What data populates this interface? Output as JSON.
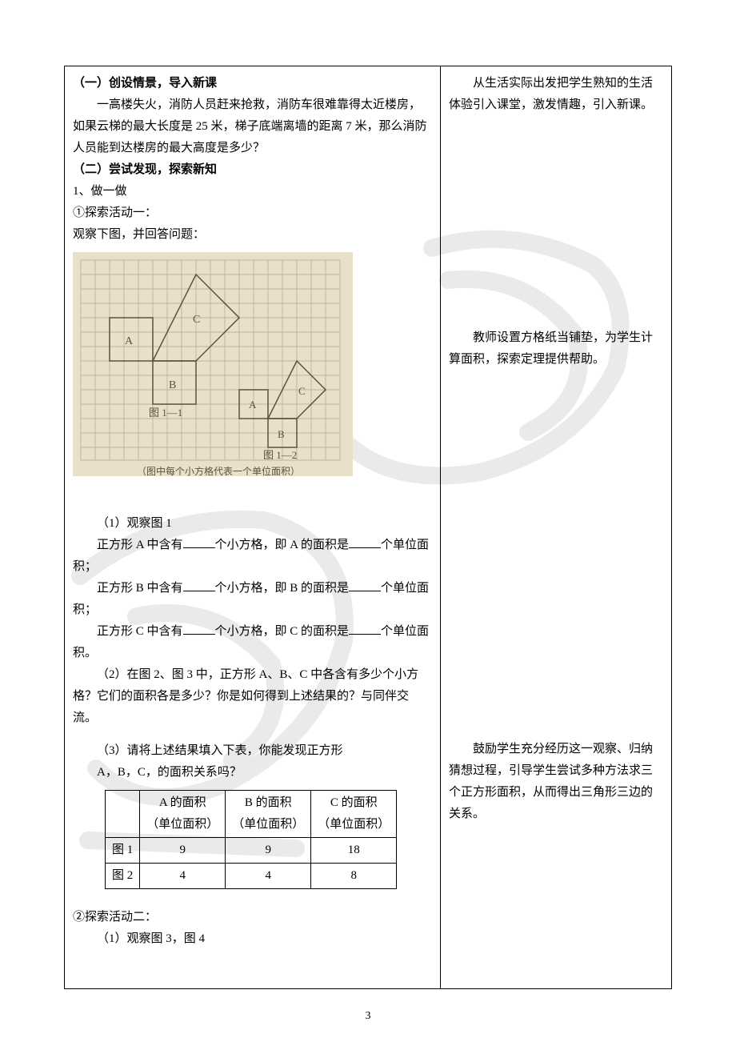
{
  "watermark": {
    "stroke": "#d6d6d6",
    "opacity": 0.55
  },
  "section1": {
    "title": "（一）创设情景，导入新课",
    "para": "一高楼失火，消防人员赶来抢救，消防车很难靠得太近楼房，如果云梯的最大长度是 25 米，梯子底端离墙的距离 7 米，那么消防人员能到达楼房的最大高度是多少？"
  },
  "note1": "从生活实际出发把学生熟知的生活体验引入课堂，激发情趣，引入新课。",
  "section2": {
    "title": "（二）尝试发现，探索新知",
    "item1": "1、做一做",
    "act1_label": "①探索活动一：",
    "act1_intro": "观察下图，并回答问题：",
    "figure": {
      "bg": "#e8e0c8",
      "grid": "#b0a988",
      "line": "#5a5340",
      "text": "#5a5340",
      "caption": "（图中每个小方格代表一个单位面积）",
      "labels": {
        "A": "A",
        "B": "B",
        "C": "C",
        "fig1": "图 1—1",
        "fig2": "图 1—2"
      }
    },
    "q1_title": "（1）观察图 1",
    "q1_a_pre": "正方形 A 中含有",
    "q1_a_mid": "个小方格，即 A 的面积是",
    "q1_a_post": "个单位面积；",
    "q1_b_pre": "正方形 B 中含有",
    "q1_b_mid": "个小方格，即 B 的面积是",
    "q1_b_post": "个单位面积；",
    "q1_c_pre": "正方形 C 中含有",
    "q1_c_mid": "个小方格，即 C 的面积是",
    "q1_c_post": "个单位面积。",
    "q2": "（2）在图 2、图 3 中，正方形 A、B、C 中各含有多少个小方格？它们的面积各是多少？你是如何得到上述结果的？与同伴交流。",
    "q3_line1": "（3）请将上述结果填入下表，你能发现正方形",
    "q3_line2": "A，B，C，的面积关系吗？",
    "table": {
      "headers": [
        "",
        "A 的面积\n（单位面积）",
        "B 的面积\n（单位面积）",
        "C 的面积\n（单位面积）"
      ],
      "rows": [
        [
          "图 1",
          "9",
          "9",
          "18"
        ],
        [
          "图 2",
          "4",
          "4",
          "8"
        ]
      ]
    },
    "act2_label": "②探索活动二：",
    "act2_q1": "（1）观察图 3，图 4"
  },
  "note2": "教师设置方格纸当铺垫，为学生计算面积，探索定理提供帮助。",
  "note3": "鼓励学生充分经历这一观察、归纳猜想过程，引导学生尝试多种方法求三个正方形面积，从而得出三角形三边的关系。",
  "pageNumber": "3"
}
